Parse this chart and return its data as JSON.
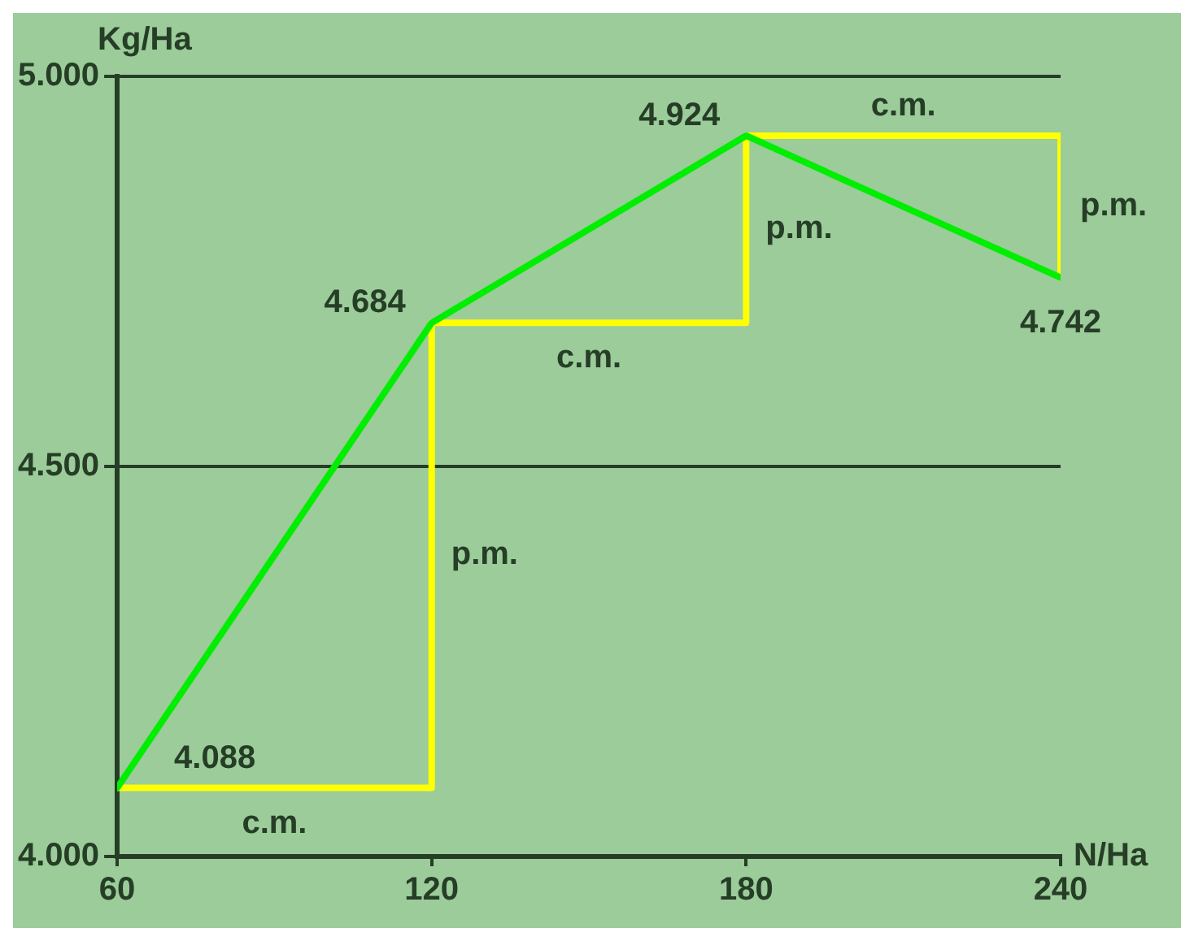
{
  "chart_data": {
    "type": "line",
    "xlabel": "N/Ha",
    "ylabel": "Kg/Ha",
    "xlim": [
      60,
      240
    ],
    "xticks": [
      60,
      120,
      180,
      240
    ],
    "ylim": [
      4000,
      5000
    ],
    "yticks": [
      {
        "value": 4000,
        "label": "4.000"
      },
      {
        "value": 4500,
        "label": "4.500"
      },
      {
        "value": 5000,
        "label": "5.000"
      }
    ],
    "grid": "y",
    "marker": "none",
    "line_style": "solid",
    "series": [
      {
        "color": "#00ee00",
        "x": [
          60,
          120,
          180,
          240
        ],
        "values": [
          4088,
          4684,
          4924,
          4742
        ],
        "value_labels": [
          "4.088",
          "4.684",
          "4.924",
          "4.742"
        ]
      },
      {
        "color": "#ffff00",
        "x": [
          60,
          120,
          120,
          180,
          180,
          240,
          240
        ],
        "values": [
          4088,
          4088,
          4684,
          4684,
          4924,
          4924,
          4742
        ]
      }
    ],
    "annotations": [
      "c.m.",
      "p.m.",
      "c.m.",
      "p.m.",
      "c.m.",
      "p.m."
    ]
  }
}
